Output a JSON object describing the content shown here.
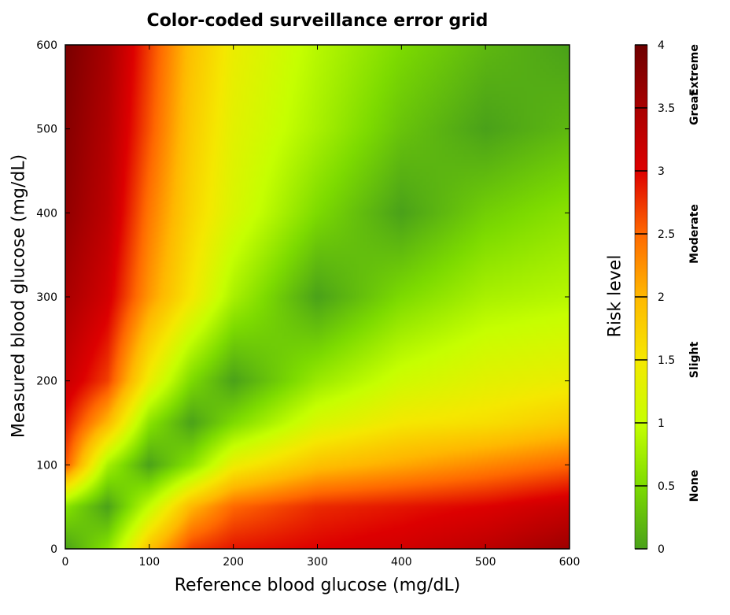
{
  "chart_data": {
    "type": "heatmap",
    "title": "Color-coded surveillance error grid",
    "xlabel": "Reference blood glucose (mg/dL)",
    "ylabel": "Measured blood glucose (mg/dL)",
    "xlim": [
      0,
      600
    ],
    "ylim": [
      0,
      600
    ],
    "xticks": [
      0,
      100,
      200,
      300,
      400,
      500,
      600
    ],
    "yticks": [
      0,
      100,
      200,
      300,
      400,
      500,
      600
    ],
    "colorbar": {
      "label": "Risk level",
      "range": [
        0,
        4
      ],
      "ticks": [
        0,
        0.5,
        1,
        1.5,
        2,
        2.5,
        3,
        3.5,
        4
      ],
      "tick_labels": [
        "0",
        "0.5",
        "1",
        "1.5",
        "2",
        "2.5",
        "3",
        "3.5",
        "4"
      ],
      "categories": [
        {
          "label": "None",
          "center": 0.5
        },
        {
          "label": "Slight",
          "center": 1.5
        },
        {
          "label": "Moderate",
          "center": 2.5
        },
        {
          "label": "Great",
          "center": 3.5
        },
        {
          "label": "Extreme",
          "center": 4.5
        }
      ],
      "colors": [
        {
          "value": 0,
          "color": "#4aa11a"
        },
        {
          "value": 0.5,
          "color": "#7ddb00"
        },
        {
          "value": 1,
          "color": "#c6ff00"
        },
        {
          "value": 1.5,
          "color": "#f5e800"
        },
        {
          "value": 2,
          "color": "#ffb800"
        },
        {
          "value": 2.5,
          "color": "#ff6800"
        },
        {
          "value": 3,
          "color": "#dd0000"
        },
        {
          "value": 3.5,
          "color": "#a80000"
        },
        {
          "value": 4,
          "color": "#6e0000"
        }
      ]
    },
    "grid": false,
    "risk_samples": {
      "reference": [
        0,
        50,
        100,
        150,
        200,
        300,
        400,
        500,
        600
      ],
      "measured": [
        0,
        50,
        100,
        150,
        200,
        300,
        400,
        500,
        600
      ],
      "values": [
        [
          0.0,
          0.6,
          1.9,
          2.7,
          2.9,
          3.0,
          3.1,
          3.3,
          3.6
        ],
        [
          0.6,
          0.0,
          1.0,
          2.0,
          2.5,
          2.8,
          2.9,
          3.0,
          3.2
        ],
        [
          2.6,
          0.8,
          0.0,
          0.6,
          1.4,
          1.9,
          2.1,
          2.3,
          2.5
        ],
        [
          2.9,
          2.0,
          0.6,
          0.0,
          0.5,
          1.2,
          1.5,
          1.6,
          1.8
        ],
        [
          3.2,
          2.7,
          1.4,
          0.5,
          0.0,
          0.7,
          1.1,
          1.3,
          1.4
        ],
        [
          3.5,
          3.1,
          2.2,
          1.5,
          0.8,
          0.0,
          0.5,
          0.8,
          0.9
        ],
        [
          3.7,
          3.3,
          2.4,
          1.7,
          1.2,
          0.5,
          0.0,
          0.4,
          0.6
        ],
        [
          3.8,
          3.4,
          2.6,
          1.8,
          1.3,
          0.8,
          0.3,
          0.0,
          0.2
        ],
        [
          3.9,
          3.5,
          2.7,
          1.9,
          1.4,
          0.9,
          0.5,
          0.2,
          0.0
        ]
      ]
    }
  }
}
